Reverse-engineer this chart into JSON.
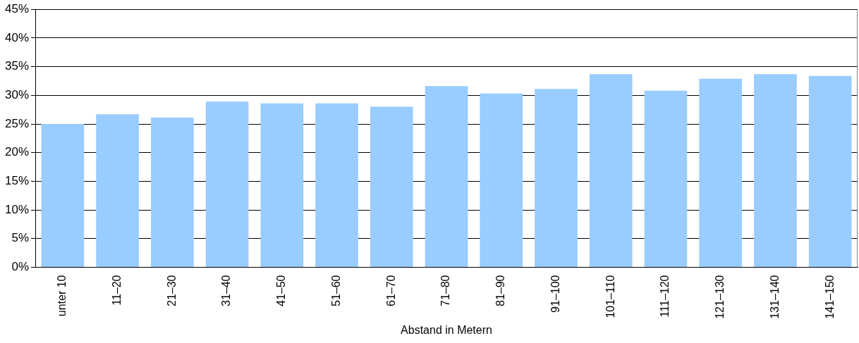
{
  "chart_data": {
    "type": "bar",
    "xlabel": "Abstand in Metern",
    "categories": [
      "unter 10",
      "11–20",
      "21–30",
      "31–40",
      "41–50",
      "51–60",
      "61–70",
      "71–80",
      "81–90",
      "91–100",
      "101–110",
      "111–120",
      "121–130",
      "131–140",
      "141–150"
    ],
    "values": [
      25.0,
      26.7,
      26.1,
      28.9,
      28.6,
      28.6,
      28.0,
      31.6,
      30.3,
      31.1,
      33.7,
      30.8,
      32.9,
      33.7,
      33.4
    ],
    "color": "#99ccff",
    "ylim": [
      0,
      45
    ],
    "yticks": [
      {
        "value": 0,
        "label": "0%"
      },
      {
        "value": 5,
        "label": "5%"
      },
      {
        "value": 10,
        "label": "10%"
      },
      {
        "value": 15,
        "label": "15%"
      },
      {
        "value": 20,
        "label": "20%"
      },
      {
        "value": 25,
        "label": "25%"
      },
      {
        "value": 30,
        "label": "30%"
      },
      {
        "value": 35,
        "label": "35%"
      },
      {
        "value": 40,
        "label": "40%"
      },
      {
        "value": 45,
        "label": "45%"
      }
    ],
    "grid": "y",
    "legend": false
  }
}
